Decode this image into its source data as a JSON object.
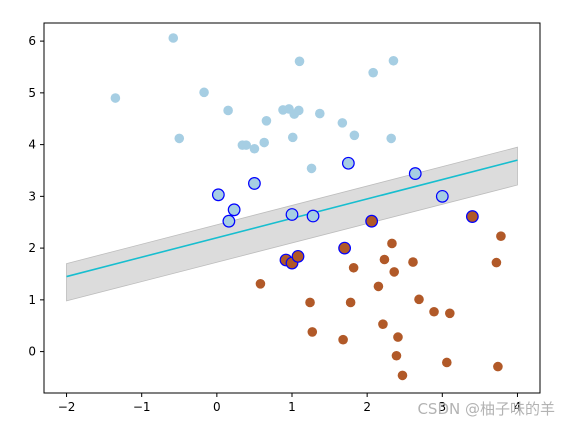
{
  "watermark": "CSDN @柚子味的羊",
  "chart_data": {
    "type": "scatter",
    "title": "",
    "xlabel": "",
    "ylabel": "",
    "xlim": [
      -2.3,
      4.3
    ],
    "ylim": [
      -0.8,
      6.35
    ],
    "xticks": [
      -2,
      -1,
      0,
      1,
      2,
      3,
      4
    ],
    "yticks": [
      0,
      1,
      2,
      3,
      4,
      5,
      6
    ],
    "grid": false,
    "legend": "none",
    "colors": {
      "class_a": "#a6cee3",
      "class_b": "#b15928",
      "support_vector_edge": "#0000ff",
      "decision_line": "#17becf",
      "margin_band": "#d3d3d3"
    },
    "decision_boundary": {
      "x": [
        -2,
        4
      ],
      "y": [
        1.45,
        3.7
      ],
      "band_lower": [
        0.98,
        3.22
      ],
      "band_upper": [
        1.7,
        3.95
      ]
    },
    "series": [
      {
        "class": "a",
        "points": [
          [
            -1.35,
            4.9
          ],
          [
            -0.58,
            6.06
          ],
          [
            -0.5,
            4.12
          ],
          [
            -0.17,
            5.01
          ],
          [
            0.15,
            4.66
          ],
          [
            0.34,
            3.99
          ],
          [
            0.39,
            3.99
          ],
          [
            0.5,
            3.92
          ],
          [
            0.63,
            4.04
          ],
          [
            0.66,
            4.46
          ],
          [
            0.88,
            4.67
          ],
          [
            0.96,
            4.69
          ],
          [
            1.01,
            4.14
          ],
          [
            1.03,
            4.59
          ],
          [
            1.09,
            4.66
          ],
          [
            1.1,
            5.61
          ],
          [
            1.26,
            3.54
          ],
          [
            1.37,
            4.6
          ],
          [
            1.67,
            4.42
          ],
          [
            1.83,
            4.18
          ],
          [
            2.08,
            5.39
          ],
          [
            2.32,
            4.12
          ],
          [
            2.35,
            5.62
          ]
        ]
      },
      {
        "class": "b",
        "points": [
          [
            0.58,
            1.31
          ],
          [
            1.24,
            0.95
          ],
          [
            1.27,
            0.38
          ],
          [
            1.68,
            0.23
          ],
          [
            1.78,
            0.95
          ],
          [
            1.82,
            1.62
          ],
          [
            2.15,
            1.26
          ],
          [
            2.21,
            0.53
          ],
          [
            2.23,
            1.78
          ],
          [
            2.33,
            2.09
          ],
          [
            2.36,
            1.54
          ],
          [
            2.39,
            -0.08
          ],
          [
            2.41,
            0.28
          ],
          [
            2.47,
            -0.46
          ],
          [
            2.61,
            1.73
          ],
          [
            2.69,
            1.01
          ],
          [
            2.89,
            0.77
          ],
          [
            3.06,
            -0.21
          ],
          [
            3.1,
            0.74
          ],
          [
            3.72,
            1.72
          ],
          [
            3.74,
            -0.29
          ],
          [
            3.78,
            2.23
          ]
        ]
      },
      {
        "class": "a",
        "support_vector": true,
        "points": [
          [
            0.02,
            3.03
          ],
          [
            0.16,
            2.52
          ],
          [
            0.23,
            2.74
          ],
          [
            0.5,
            3.25
          ],
          [
            1.0,
            2.65
          ],
          [
            1.28,
            2.62
          ],
          [
            1.75,
            3.64
          ],
          [
            2.64,
            3.44
          ],
          [
            3.0,
            3.0
          ]
        ]
      },
      {
        "class": "b",
        "support_vector": true,
        "points": [
          [
            0.92,
            1.77
          ],
          [
            1.0,
            1.71
          ],
          [
            1.08,
            1.84
          ],
          [
            1.7,
            2.0
          ],
          [
            2.06,
            2.52
          ],
          [
            3.4,
            2.61
          ]
        ]
      }
    ]
  }
}
